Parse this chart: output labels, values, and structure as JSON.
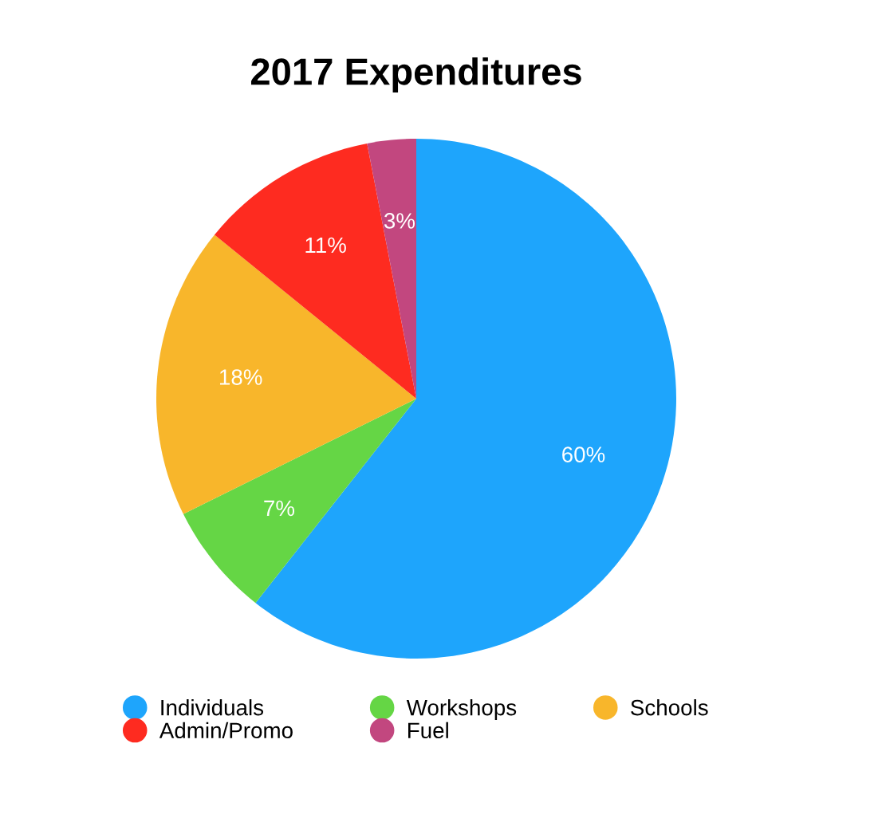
{
  "chart_data": {
    "type": "pie",
    "title": "2017 Expenditures",
    "categories": [
      "Individuals",
      "Workshops",
      "Schools",
      "Admin/Promo",
      "Fuel"
    ],
    "values": [
      60,
      7,
      18,
      11,
      3
    ],
    "colors": [
      "#1ea5fc",
      "#65d645",
      "#f8b62b",
      "#fe2b20",
      "#c2477f"
    ],
    "value_labels": [
      "60%",
      "7%",
      "18%",
      "11%",
      "3%"
    ],
    "legend": "bottom"
  }
}
